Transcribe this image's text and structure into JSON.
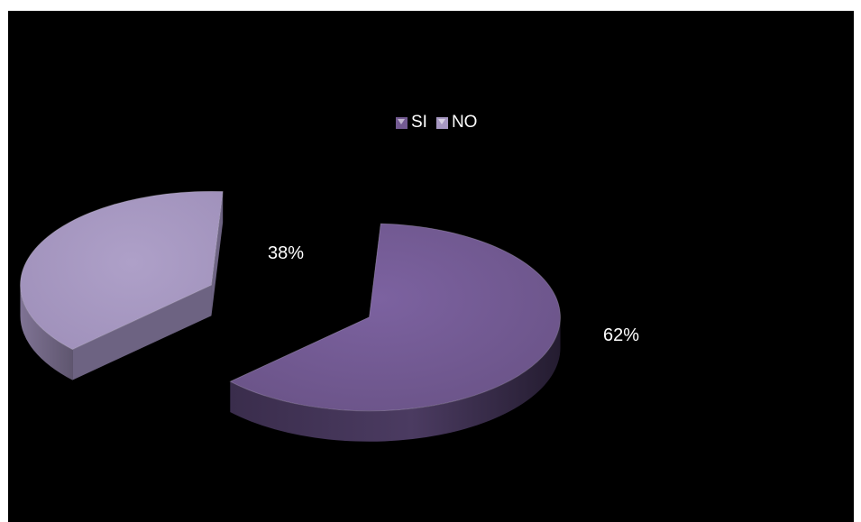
{
  "chart_data": {
    "type": "pie",
    "categories": [
      "SI",
      "NO"
    ],
    "values": [
      62,
      38
    ],
    "data_labels": [
      "62%",
      "38%"
    ],
    "colors": [
      "#735A92",
      "#A798C2"
    ],
    "legend": "top",
    "style": "3d-exploded"
  }
}
